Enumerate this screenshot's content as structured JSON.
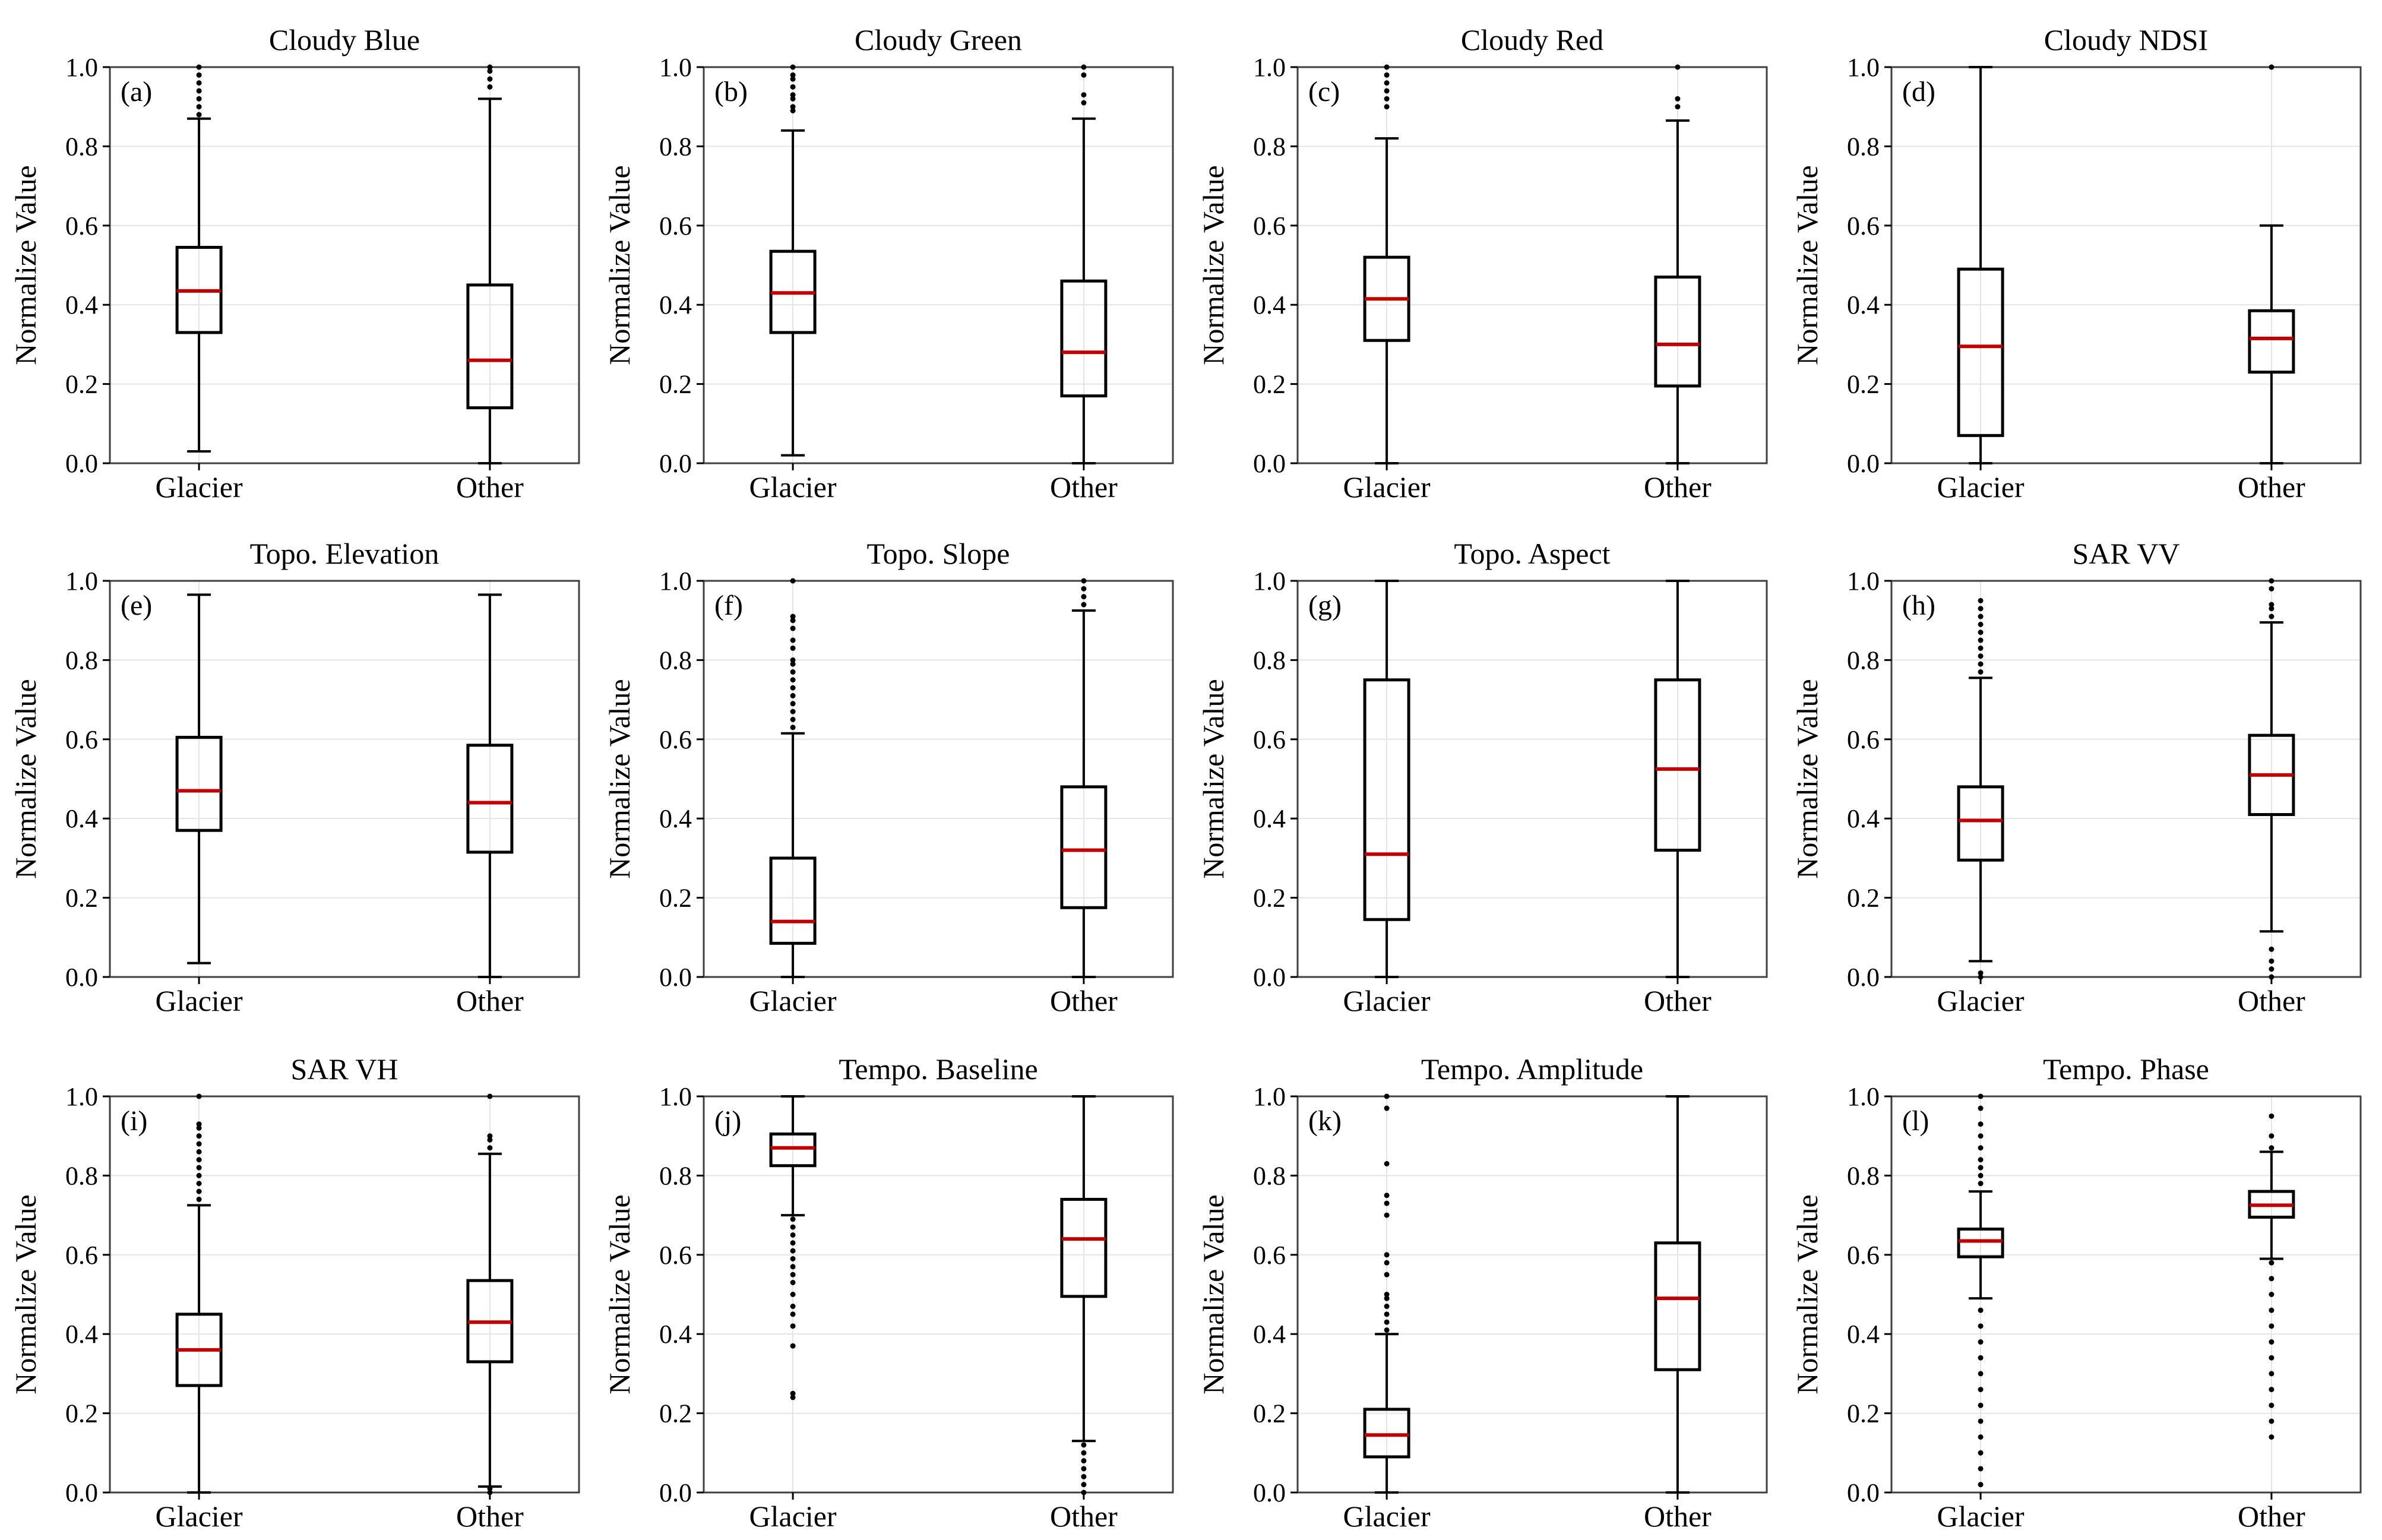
{
  "figure": {
    "ylabel": "Normalize Value",
    "yticks": [
      "0.0",
      "0.2",
      "0.4",
      "0.6",
      "0.8",
      "1.0"
    ],
    "median_color": "#c00000",
    "box_color": "#000000",
    "grid": true
  },
  "chart_data": [
    {
      "type": "box",
      "panel": "(a)",
      "title": "Cloudy Blue",
      "ylabel": "Normalize Value",
      "ylim": [
        0,
        1
      ],
      "categories": [
        "Glacier",
        "Other"
      ],
      "boxes": [
        {
          "category": "Glacier",
          "whisker_low": 0.03,
          "q1": 0.33,
          "median": 0.435,
          "q3": 0.545,
          "whisker_high": 0.87,
          "outliers": [
            0.88,
            0.9,
            0.92,
            0.94,
            0.96,
            0.98,
            1.0
          ]
        },
        {
          "category": "Other",
          "whisker_low": 0.0,
          "q1": 0.14,
          "median": 0.26,
          "q3": 0.45,
          "whisker_high": 0.92,
          "outliers": [
            0.95,
            0.97,
            0.99,
            1.0
          ]
        }
      ]
    },
    {
      "type": "box",
      "panel": "(b)",
      "title": "Cloudy Green",
      "ylabel": "Normalize Value",
      "ylim": [
        0,
        1
      ],
      "categories": [
        "Glacier",
        "Other"
      ],
      "boxes": [
        {
          "category": "Glacier",
          "whisker_low": 0.02,
          "q1": 0.33,
          "median": 0.43,
          "q3": 0.535,
          "whisker_high": 0.84,
          "outliers": [
            0.89,
            0.9,
            0.92,
            0.93,
            0.95,
            0.97,
            0.98,
            1.0
          ]
        },
        {
          "category": "Other",
          "whisker_low": 0.0,
          "q1": 0.17,
          "median": 0.28,
          "q3": 0.46,
          "whisker_high": 0.87,
          "outliers": [
            0.91,
            0.93,
            0.98,
            1.0
          ]
        }
      ]
    },
    {
      "type": "box",
      "panel": "(c)",
      "title": "Cloudy Red",
      "ylabel": "Normalize Value",
      "ylim": [
        0,
        1
      ],
      "categories": [
        "Glacier",
        "Other"
      ],
      "boxes": [
        {
          "category": "Glacier",
          "whisker_low": 0.0,
          "q1": 0.31,
          "median": 0.415,
          "q3": 0.52,
          "whisker_high": 0.82,
          "outliers": [
            0.9,
            0.92,
            0.94,
            0.96,
            0.98,
            1.0
          ]
        },
        {
          "category": "Other",
          "whisker_low": 0.0,
          "q1": 0.195,
          "median": 0.3,
          "q3": 0.47,
          "whisker_high": 0.865,
          "outliers": [
            0.9,
            0.92,
            1.0
          ]
        }
      ]
    },
    {
      "type": "box",
      "panel": "(d)",
      "title": "Cloudy NDSI",
      "ylabel": "Normalize Value",
      "ylim": [
        0,
        1
      ],
      "categories": [
        "Glacier",
        "Other"
      ],
      "boxes": [
        {
          "category": "Glacier",
          "whisker_low": 0.0,
          "q1": 0.07,
          "median": 0.295,
          "q3": 0.49,
          "whisker_high": 1.0,
          "outliers": []
        },
        {
          "category": "Other",
          "whisker_low": 0.0,
          "q1": 0.23,
          "median": 0.315,
          "q3": 0.385,
          "whisker_high": 0.6,
          "outliers": [
            1.0
          ]
        }
      ]
    },
    {
      "type": "box",
      "panel": "(e)",
      "title": "Topo. Elevation",
      "ylabel": "Normalize Value",
      "ylim": [
        0,
        1
      ],
      "categories": [
        "Glacier",
        "Other"
      ],
      "boxes": [
        {
          "category": "Glacier",
          "whisker_low": 0.035,
          "q1": 0.37,
          "median": 0.47,
          "q3": 0.605,
          "whisker_high": 0.965,
          "outliers": []
        },
        {
          "category": "Other",
          "whisker_low": 0.0,
          "q1": 0.315,
          "median": 0.44,
          "q3": 0.585,
          "whisker_high": 0.965,
          "outliers": []
        }
      ]
    },
    {
      "type": "box",
      "panel": "(f)",
      "title": "Topo. Slope",
      "ylabel": "Normalize Value",
      "ylim": [
        0,
        1
      ],
      "categories": [
        "Glacier",
        "Other"
      ],
      "boxes": [
        {
          "category": "Glacier",
          "whisker_low": 0.0,
          "q1": 0.085,
          "median": 0.14,
          "q3": 0.3,
          "whisker_high": 0.615,
          "outliers": [
            0.63,
            0.65,
            0.67,
            0.69,
            0.71,
            0.73,
            0.75,
            0.77,
            0.79,
            0.8,
            0.83,
            0.85,
            0.88,
            0.9,
            0.91,
            1.0
          ]
        },
        {
          "category": "Other",
          "whisker_low": 0.0,
          "q1": 0.175,
          "median": 0.32,
          "q3": 0.48,
          "whisker_high": 0.925,
          "outliers": [
            0.94,
            0.96,
            0.98,
            1.0
          ]
        }
      ]
    },
    {
      "type": "box",
      "panel": "(g)",
      "title": "Topo. Aspect",
      "ylabel": "Normalize Value",
      "ylim": [
        0,
        1
      ],
      "categories": [
        "Glacier",
        "Other"
      ],
      "boxes": [
        {
          "category": "Glacier",
          "whisker_low": 0.0,
          "q1": 0.145,
          "median": 0.31,
          "q3": 0.75,
          "whisker_high": 1.0,
          "outliers": []
        },
        {
          "category": "Other",
          "whisker_low": 0.0,
          "q1": 0.32,
          "median": 0.525,
          "q3": 0.75,
          "whisker_high": 1.0,
          "outliers": []
        }
      ]
    },
    {
      "type": "box",
      "panel": "(h)",
      "title": "SAR VV",
      "ylabel": "Normalize Value",
      "ylim": [
        0,
        1
      ],
      "categories": [
        "Glacier",
        "Other"
      ],
      "boxes": [
        {
          "category": "Glacier",
          "whisker_low": 0.04,
          "q1": 0.295,
          "median": 0.395,
          "q3": 0.48,
          "whisker_high": 0.755,
          "outliers": [
            0.0,
            0.01,
            0.77,
            0.79,
            0.81,
            0.83,
            0.85,
            0.87,
            0.89,
            0.91,
            0.93,
            0.95
          ]
        },
        {
          "category": "Other",
          "whisker_low": 0.115,
          "q1": 0.41,
          "median": 0.51,
          "q3": 0.61,
          "whisker_high": 0.895,
          "outliers": [
            0.0,
            0.02,
            0.04,
            0.07,
            0.91,
            0.93,
            0.94,
            0.98,
            1.0
          ]
        }
      ]
    },
    {
      "type": "box",
      "panel": "(i)",
      "title": "SAR VH",
      "ylabel": "Normalize Value",
      "ylim": [
        0,
        1
      ],
      "categories": [
        "Glacier",
        "Other"
      ],
      "boxes": [
        {
          "category": "Glacier",
          "whisker_low": 0.0,
          "q1": 0.27,
          "median": 0.36,
          "q3": 0.45,
          "whisker_high": 0.725,
          "outliers": [
            0.74,
            0.76,
            0.78,
            0.8,
            0.82,
            0.84,
            0.86,
            0.88,
            0.9,
            0.92,
            0.93,
            1.0
          ]
        },
        {
          "category": "Other",
          "whisker_low": 0.015,
          "q1": 0.33,
          "median": 0.43,
          "q3": 0.535,
          "whisker_high": 0.855,
          "outliers": [
            0.0,
            0.01,
            0.87,
            0.89,
            0.9,
            1.0
          ]
        }
      ]
    },
    {
      "type": "box",
      "panel": "(j)",
      "title": "Tempo. Baseline",
      "ylabel": "Normalize Value",
      "ylim": [
        0,
        1
      ],
      "categories": [
        "Glacier",
        "Other"
      ],
      "boxes": [
        {
          "category": "Glacier",
          "whisker_low": 0.7,
          "q1": 0.825,
          "median": 0.87,
          "q3": 0.905,
          "whisker_high": 1.0,
          "outliers": [
            0.24,
            0.25,
            0.37,
            0.42,
            0.45,
            0.47,
            0.5,
            0.53,
            0.55,
            0.57,
            0.59,
            0.61,
            0.63,
            0.65,
            0.67,
            0.69
          ]
        },
        {
          "category": "Other",
          "whisker_low": 0.13,
          "q1": 0.495,
          "median": 0.64,
          "q3": 0.74,
          "whisker_high": 1.0,
          "outliers": [
            0.0,
            0.02,
            0.04,
            0.06,
            0.08,
            0.1,
            0.12
          ]
        }
      ]
    },
    {
      "type": "box",
      "panel": "(k)",
      "title": "Tempo. Amplitude",
      "ylabel": "Normalize Value",
      "ylim": [
        0,
        1
      ],
      "categories": [
        "Glacier",
        "Other"
      ],
      "boxes": [
        {
          "category": "Glacier",
          "whisker_low": 0.0,
          "q1": 0.09,
          "median": 0.145,
          "q3": 0.21,
          "whisker_high": 0.4,
          "outliers": [
            0.41,
            0.43,
            0.45,
            0.47,
            0.49,
            0.5,
            0.55,
            0.58,
            0.6,
            0.7,
            0.73,
            0.75,
            0.83,
            0.97,
            1.0
          ]
        },
        {
          "category": "Other",
          "whisker_low": 0.0,
          "q1": 0.31,
          "median": 0.49,
          "q3": 0.63,
          "whisker_high": 1.0,
          "outliers": []
        }
      ]
    },
    {
      "type": "box",
      "panel": "(l)",
      "title": "Tempo. Phase",
      "ylabel": "Normalize Value",
      "ylim": [
        0,
        1
      ],
      "categories": [
        "Glacier",
        "Other"
      ],
      "boxes": [
        {
          "category": "Glacier",
          "whisker_low": 0.49,
          "q1": 0.595,
          "median": 0.635,
          "q3": 0.665,
          "whisker_high": 0.76,
          "outliers": [
            0.02,
            0.06,
            0.1,
            0.14,
            0.18,
            0.22,
            0.26,
            0.3,
            0.34,
            0.38,
            0.42,
            0.46,
            0.78,
            0.8,
            0.82,
            0.84,
            0.87,
            0.9,
            0.93,
            0.97,
            1.0
          ]
        },
        {
          "category": "Other",
          "whisker_low": 0.59,
          "q1": 0.695,
          "median": 0.725,
          "q3": 0.76,
          "whisker_high": 0.86,
          "outliers": [
            0.14,
            0.18,
            0.22,
            0.26,
            0.3,
            0.34,
            0.38,
            0.42,
            0.46,
            0.5,
            0.54,
            0.58,
            0.87,
            0.9,
            0.95
          ]
        }
      ]
    }
  ]
}
